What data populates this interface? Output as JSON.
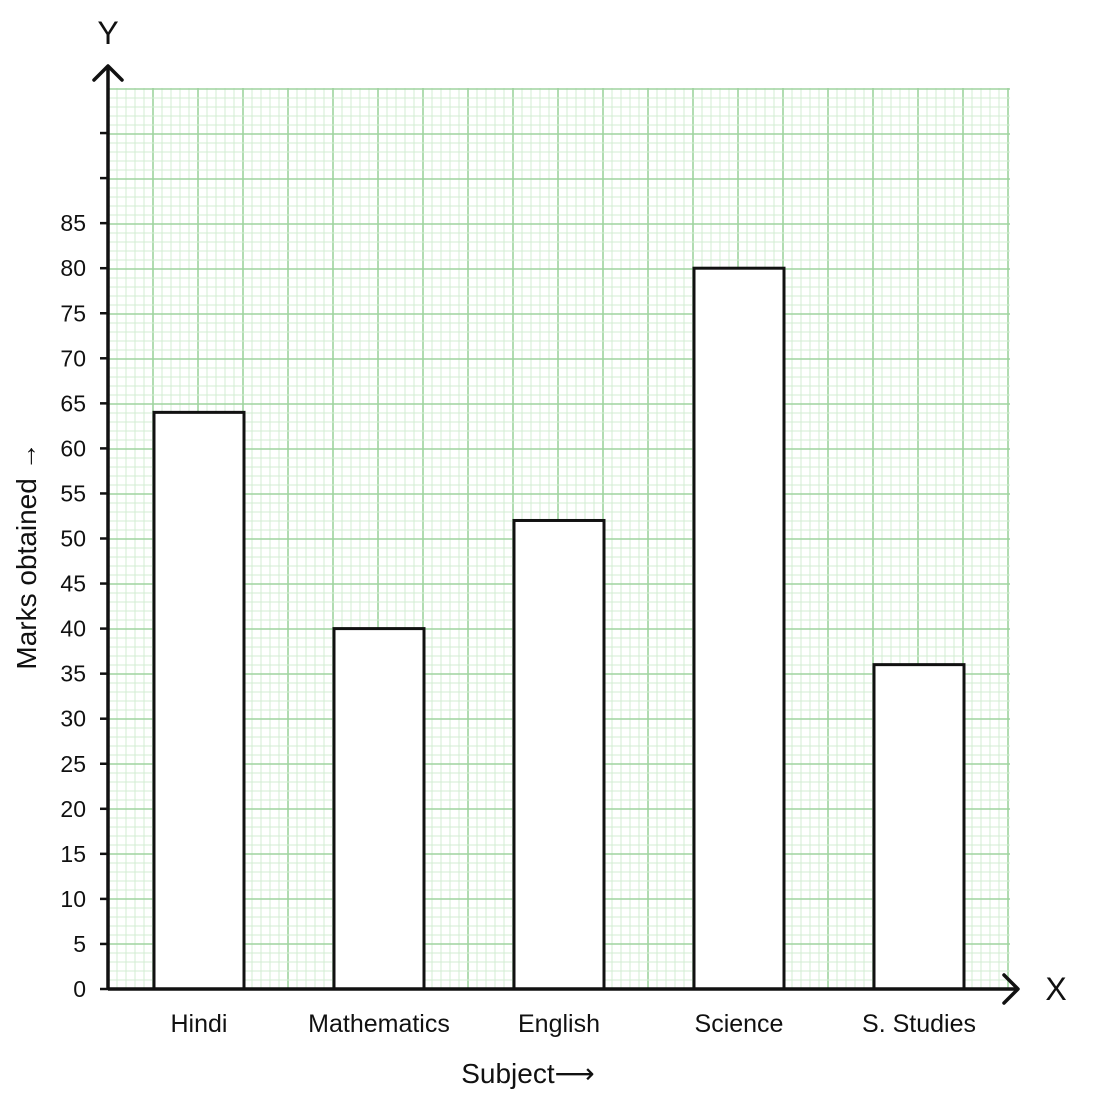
{
  "chart_data": {
    "type": "bar",
    "categories": [
      "Hindi",
      "Mathematics",
      "English",
      "Science",
      "S. Studies"
    ],
    "values": [
      64,
      40,
      52,
      80,
      36
    ],
    "xlabel": "Subject⟶",
    "ylabel": "Marks obtained →",
    "x_axis_letter": "X",
    "y_axis_letter": "Y",
    "ylim": [
      0,
      100
    ],
    "y_ticks": [
      "0",
      "5",
      "10",
      "15",
      "20",
      "25",
      "30",
      "35",
      "40",
      "45",
      "50",
      "55",
      "60",
      "65",
      "70",
      "75",
      "80",
      "85"
    ],
    "grid": true,
    "grid_color": "#9fd39f",
    "grid_minor_color": "#d3ecd3",
    "bar_fill": "#ffffff",
    "bar_stroke": "#111111"
  }
}
